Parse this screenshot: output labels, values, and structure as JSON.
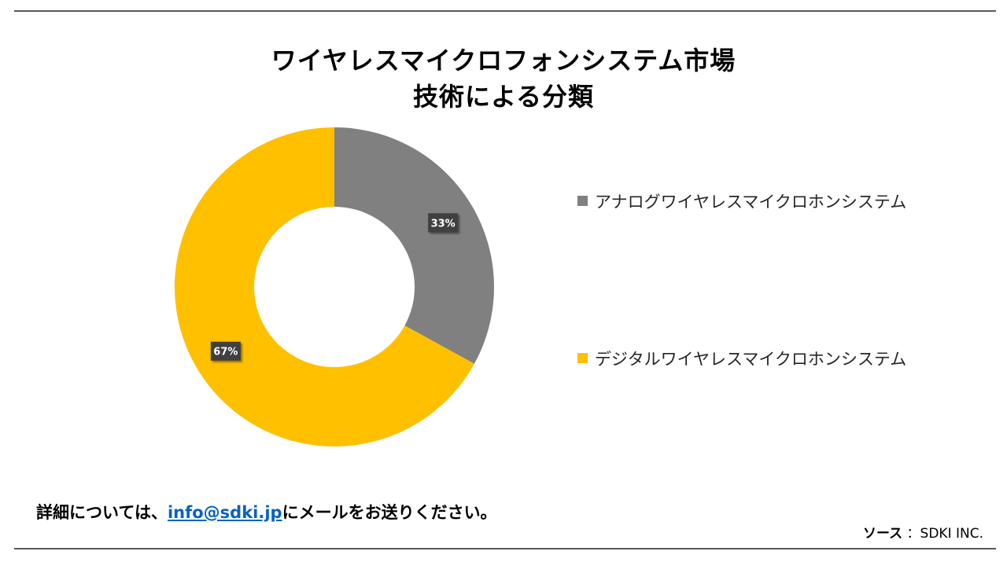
{
  "title": {
    "line1": "ワイヤレスマイクロフォンシステム市場",
    "line2": "技術による分類"
  },
  "chart_data": {
    "type": "pie",
    "donut": true,
    "categories": [
      "アナログワイヤレスマイクロホンシステム",
      "デジタルワイヤレスマイクロホンシステム"
    ],
    "values": [
      33,
      67
    ],
    "data_labels": [
      "33%",
      "67%"
    ],
    "colors": [
      "#808080",
      "#ffc000"
    ],
    "legend_position": "right"
  },
  "footer": {
    "prefix": "詳細については、",
    "email": "info@sdki.jp",
    "suffix": "にメールをお送りください。"
  },
  "source": {
    "key": "ソース",
    "value": "：SDKI INC."
  }
}
